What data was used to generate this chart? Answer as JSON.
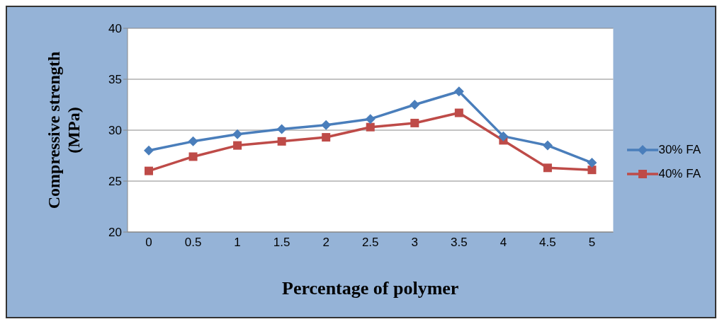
{
  "chart_data": {
    "type": "line",
    "xlabel": "Percentage of polymer",
    "ylabel": "Compressive strength (MPa)",
    "categories": [
      "0",
      "0.5",
      "1",
      "1.5",
      "2",
      "2.5",
      "3",
      "3.5",
      "4",
      "4.5",
      "5"
    ],
    "series": [
      {
        "name": "30% FA",
        "color": "#4a7ebb",
        "marker": "diamond",
        "values": [
          28.0,
          28.9,
          29.6,
          30.1,
          30.5,
          31.1,
          32.5,
          33.8,
          29.4,
          28.5,
          26.8
        ]
      },
      {
        "name": "40% FA",
        "color": "#be4b48",
        "marker": "square",
        "values": [
          26.0,
          27.4,
          28.5,
          28.9,
          29.3,
          30.3,
          30.7,
          31.7,
          29.0,
          26.3,
          26.1
        ]
      }
    ],
    "ylim": [
      20,
      40
    ],
    "yticks": [
      20,
      25,
      30,
      35,
      40
    ],
    "grid": "y",
    "legend": "right",
    "line_style": "solid"
  }
}
